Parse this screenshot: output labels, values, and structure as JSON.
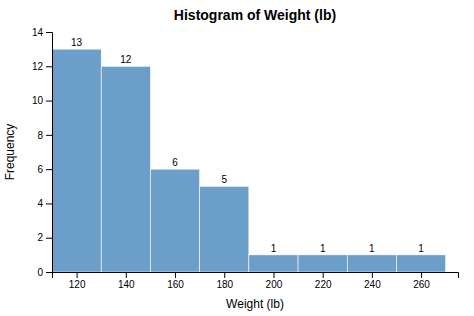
{
  "chart_data": {
    "type": "histogram",
    "title": "Histogram of Weight (lb)",
    "xlabel": "Weight (lb)",
    "ylabel": "Frequency",
    "bins": [
      110,
      130,
      150,
      170,
      190,
      210,
      230,
      250,
      270
    ],
    "values": [
      13,
      12,
      6,
      5,
      1,
      1,
      1,
      1
    ],
    "color": "#6B9EC8",
    "xlim": [
      110,
      275
    ],
    "xticks": [
      120,
      140,
      160,
      180,
      200,
      220,
      240,
      260
    ],
    "ylim": [
      0,
      14
    ],
    "yticks": [
      0,
      2,
      4,
      6,
      8,
      10,
      12,
      14
    ],
    "data_labels": true,
    "grid": false
  }
}
